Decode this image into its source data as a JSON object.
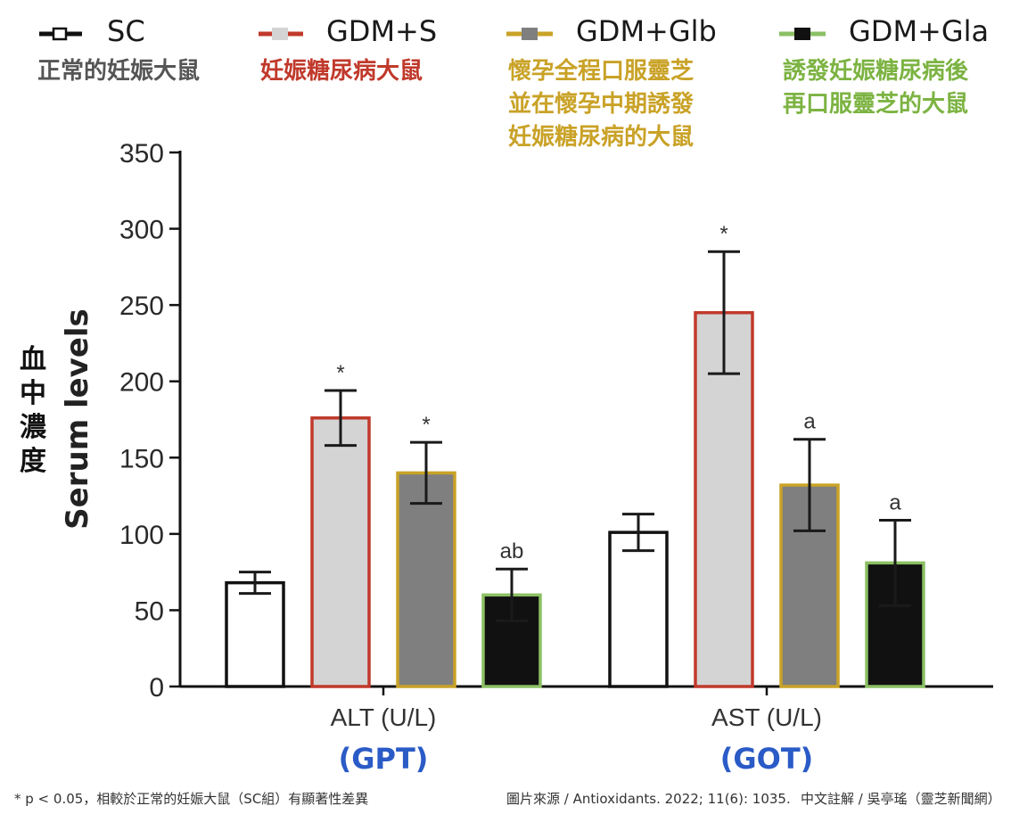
{
  "legend": [
    {
      "key": "SC",
      "description": [
        "正常的妊娠大鼠"
      ],
      "fill": "#ffffff",
      "edge": "#111111",
      "desc_color": "#555555"
    },
    {
      "key": "GDM+S",
      "description": [
        "妊娠糖尿病大鼠"
      ],
      "fill": "#d4d4d4",
      "edge": "#c0392b",
      "desc_color": "#c0392b"
    },
    {
      "key": "GDM+Glb",
      "description": [
        "懷孕全程口服靈芝",
        "並在懷孕中期誘發",
        "妊娠糖尿病的大鼠"
      ],
      "fill": "#7f7f7f",
      "edge": "#c9a227",
      "desc_color": "#c9a227"
    },
    {
      "key": "GDM+Gla",
      "description": [
        "誘發妊娠糖尿病後",
        "再口服靈芝的大鼠"
      ],
      "fill": "#111111",
      "edge": "#8bc063",
      "desc_color": "#7cb342"
    }
  ],
  "axis": {
    "ylabel_en": "Serum levels",
    "ylabel_zh": [
      "血",
      "中",
      "濃",
      "度"
    ]
  },
  "chart_data": {
    "type": "bar",
    "title": "",
    "ylabel": "Serum levels",
    "ylim": [
      0,
      350
    ],
    "yticks": [
      0,
      50,
      100,
      150,
      200,
      250,
      300,
      350
    ],
    "categories": [
      "ALT (U/L)",
      "AST (U/L)"
    ],
    "category_notes": [
      "(GPT)",
      "(GOT)"
    ],
    "series": [
      {
        "name": "SC",
        "values": [
          68,
          101
        ],
        "errors": [
          7,
          12
        ],
        "labels": [
          "",
          ""
        ]
      },
      {
        "name": "GDM+S",
        "values": [
          176,
          245
        ],
        "errors": [
          18,
          40
        ],
        "labels": [
          "*",
          "*"
        ]
      },
      {
        "name": "GDM+Glb",
        "values": [
          140,
          132
        ],
        "errors": [
          20,
          30
        ],
        "labels": [
          "*",
          "a"
        ]
      },
      {
        "name": "GDM+Gla",
        "values": [
          60,
          81
        ],
        "errors": [
          17,
          28
        ],
        "labels": [
          "ab",
          "a"
        ]
      }
    ]
  },
  "footnote": {
    "significance": "* p < 0.05，相較於正常的妊娠大鼠（SC組）有顯著性差異",
    "source": "圖片來源 / Antioxidants. 2022; 11(6): 1035.",
    "credit": "中文註解 / 吳亭瑤（靈芝新聞網）"
  }
}
